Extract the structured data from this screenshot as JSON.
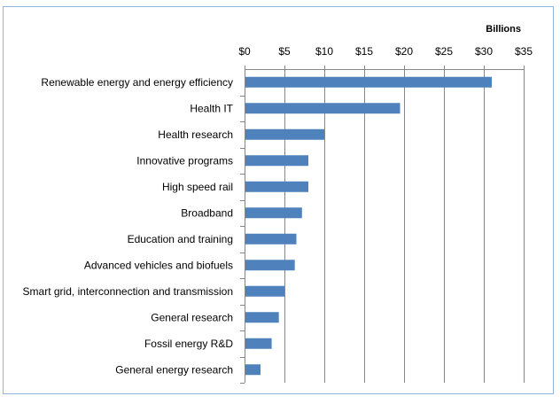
{
  "chart_data": {
    "type": "bar",
    "orientation": "horizontal",
    "unit_label": "Billions",
    "categories": [
      "Renewable energy and energy efficiency",
      "Health IT",
      "Health research",
      "Innovative programs",
      "High speed rail",
      "Broadband",
      "Education and training",
      "Advanced vehicles and biofuels",
      "Smart grid, interconnection and transmission",
      "General research",
      "Fossil energy R&D",
      "General energy research"
    ],
    "values": [
      31.0,
      19.5,
      10.0,
      8.0,
      8.0,
      7.2,
      6.5,
      6.3,
      5.0,
      4.3,
      3.4,
      2.0
    ],
    "xlim": [
      0,
      35
    ],
    "xticks": [
      0,
      5,
      10,
      15,
      20,
      25,
      30,
      35
    ],
    "xtick_labels": [
      "$0",
      "$5",
      "$10",
      "$15",
      "$20",
      "$25",
      "$30",
      "$35"
    ],
    "x_axis_position": "top",
    "grid": true,
    "bar_color": "#4f81bd"
  }
}
